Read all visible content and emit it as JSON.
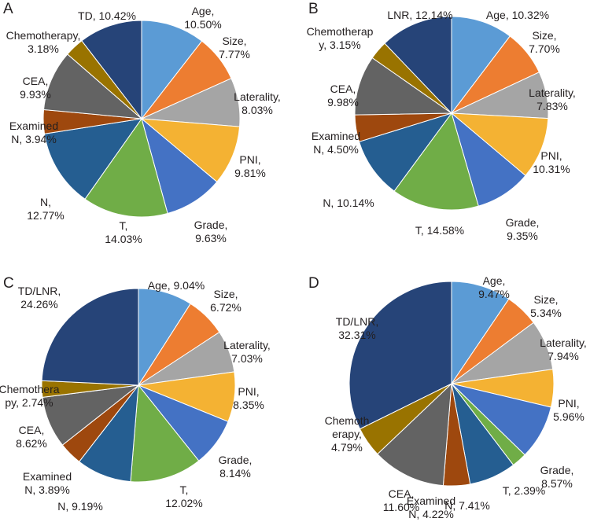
{
  "chart_data": [
    {
      "type": "pie",
      "panel": "A",
      "categories": [
        "Age",
        "Size",
        "Laterality",
        "PNI",
        "Grade",
        "T",
        "N",
        "Examined N",
        "CEA",
        "Chemotherapy",
        "TD"
      ],
      "values": [
        10.5,
        7.77,
        8.03,
        9.81,
        9.63,
        14.03,
        12.77,
        3.94,
        9.93,
        3.18,
        10.42
      ],
      "labels": [
        [
          "Age,",
          "10.50%"
        ],
        [
          "Size,",
          "7.77%"
        ],
        [
          "Laterality,",
          "8.03%"
        ],
        [
          "PNI,",
          "9.81%"
        ],
        [
          "Grade,",
          "9.63%"
        ],
        [
          "T,",
          "14.03%"
        ],
        [
          "N,",
          "12.77%"
        ],
        [
          "Examined",
          "N, 3.94%"
        ],
        [
          "CEA,",
          "9.93%"
        ],
        [
          "Chemotherapy,",
          "3.18%"
        ],
        [
          "TD, 10.42%"
        ]
      ],
      "colors": [
        "#5b9bd5",
        "#ed7d31",
        "#a5a5a5",
        "#f4b233",
        "#4472c4",
        "#70ad47",
        "#255e91",
        "#9e480e",
        "#636363",
        "#997300",
        "#264478"
      ],
      "start": "12 o'clock",
      "direction": "clockwise"
    },
    {
      "type": "pie",
      "panel": "B",
      "categories": [
        "Age",
        "Size",
        "Laterality",
        "PNI",
        "Grade",
        "T",
        "N",
        "Examined N",
        "CEA",
        "Chemotherapy",
        "LNR"
      ],
      "values": [
        10.32,
        7.7,
        7.83,
        10.31,
        9.35,
        14.58,
        10.14,
        4.5,
        9.98,
        3.15,
        12.14
      ],
      "labels": [
        [
          "Age, 10.32%"
        ],
        [
          "Size,",
          "7.70%"
        ],
        [
          "Laterality,",
          "7.83%"
        ],
        [
          "PNI,",
          "10.31%"
        ],
        [
          "Grade,",
          "9.35%"
        ],
        [
          "T, 14.58%"
        ],
        [
          "N, 10.14%"
        ],
        [
          "Examined",
          "N, 4.50%"
        ],
        [
          "CEA,",
          "9.98%"
        ],
        [
          "Chemotherap",
          "y, 3.15%"
        ],
        [
          "LNR, 12.14%"
        ]
      ],
      "colors": [
        "#5b9bd5",
        "#ed7d31",
        "#a5a5a5",
        "#f4b233",
        "#4472c4",
        "#70ad47",
        "#255e91",
        "#9e480e",
        "#636363",
        "#997300",
        "#264478"
      ],
      "start": "12 o'clock",
      "direction": "clockwise"
    },
    {
      "type": "pie",
      "panel": "C",
      "categories": [
        "Age",
        "Size",
        "Laterality",
        "PNI",
        "Grade",
        "T",
        "N",
        "Examined N",
        "CEA",
        "Chemotherapy",
        "TD/LNR"
      ],
      "values": [
        9.04,
        6.72,
        7.03,
        8.35,
        8.14,
        12.02,
        9.19,
        3.89,
        8.62,
        2.74,
        24.26
      ],
      "labels": [
        [
          "Age, 9.04%"
        ],
        [
          "Size,",
          "6.72%"
        ],
        [
          "Laterality,",
          "7.03%"
        ],
        [
          "PNI,",
          "8.35%"
        ],
        [
          "Grade,",
          "8.14%"
        ],
        [
          "T,",
          "12.02%"
        ],
        [
          "N, 9.19%"
        ],
        [
          "Examined",
          "N, 3.89%"
        ],
        [
          "CEA,",
          "8.62%"
        ],
        [
          "Chemothera",
          "py, 2.74%"
        ],
        [
          "TD/LNR,",
          "24.26%"
        ]
      ],
      "colors": [
        "#5b9bd5",
        "#ed7d31",
        "#a5a5a5",
        "#f4b233",
        "#4472c4",
        "#70ad47",
        "#255e91",
        "#9e480e",
        "#636363",
        "#997300",
        "#264478"
      ],
      "start": "12 o'clock",
      "direction": "clockwise"
    },
    {
      "type": "pie",
      "panel": "D",
      "categories": [
        "Age",
        "Size",
        "Laterality",
        "PNI",
        "Grade",
        "T",
        "N",
        "Examined N",
        "CEA",
        "Chemotherapy",
        "TD/LNR"
      ],
      "values": [
        9.47,
        5.34,
        7.94,
        5.96,
        8.57,
        2.39,
        7.41,
        4.22,
        11.6,
        4.79,
        32.31
      ],
      "labels": [
        [
          "Age,",
          "9.47%"
        ],
        [
          "Size,",
          "5.34%"
        ],
        [
          "Laterality,",
          "7.94%"
        ],
        [
          "PNI,",
          "5.96%"
        ],
        [
          "Grade,",
          "8.57%"
        ],
        [
          "T, 2.39%"
        ],
        [
          "N, 7.41%"
        ],
        [
          "Examined",
          "N, 4.22%"
        ],
        [
          "CEA,",
          "11.60%"
        ],
        [
          "Chemoth",
          "erapy,",
          "4.79%"
        ],
        [
          "TD/LNR,",
          "32.31%"
        ]
      ],
      "colors": [
        "#5b9bd5",
        "#ed7d31",
        "#a5a5a5",
        "#f4b233",
        "#4472c4",
        "#70ad47",
        "#255e91",
        "#9e480e",
        "#636363",
        "#997300",
        "#264478"
      ],
      "start": "12 o'clock",
      "direction": "clockwise"
    }
  ]
}
